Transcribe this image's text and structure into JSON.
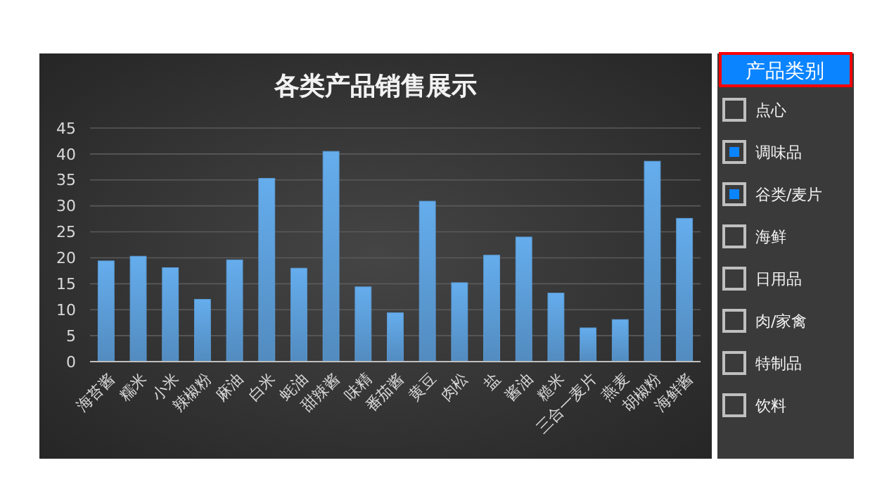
{
  "chart_data": [
    {
      "type": "bar",
      "title": "各类产品销售展示",
      "categories": [
        "海苔酱",
        "糯米",
        "小米",
        "辣椒粉",
        "麻油",
        "白米",
        "蚝油",
        "甜辣酱",
        "味精",
        "番茄酱",
        "黄豆",
        "肉松",
        "盐",
        "酱油",
        "糙米",
        "三合一麦片",
        "燕麦",
        "胡椒粉",
        "海鲜酱"
      ],
      "values": [
        19.4,
        20.3,
        18.1,
        12,
        19.6,
        35.3,
        18,
        40.5,
        14.4,
        9.4,
        30.9,
        15.2,
        20.5,
        24,
        13.2,
        6.5,
        8.1,
        38.6,
        27.6
      ],
      "color": "#5b9bd5",
      "ylim": [
        0,
        45
      ],
      "yticks": [
        0,
        5,
        10,
        15,
        20,
        25,
        30,
        35,
        40,
        45
      ],
      "grid": "y"
    },
    {
      "type": "other",
      "title": "产品类别",
      "annotations": [
        "点心",
        "调味品",
        "谷类/麦片",
        "海鲜",
        "日用品",
        "肉/家禽",
        "特制品",
        "饮料"
      ]
    }
  ]
}
